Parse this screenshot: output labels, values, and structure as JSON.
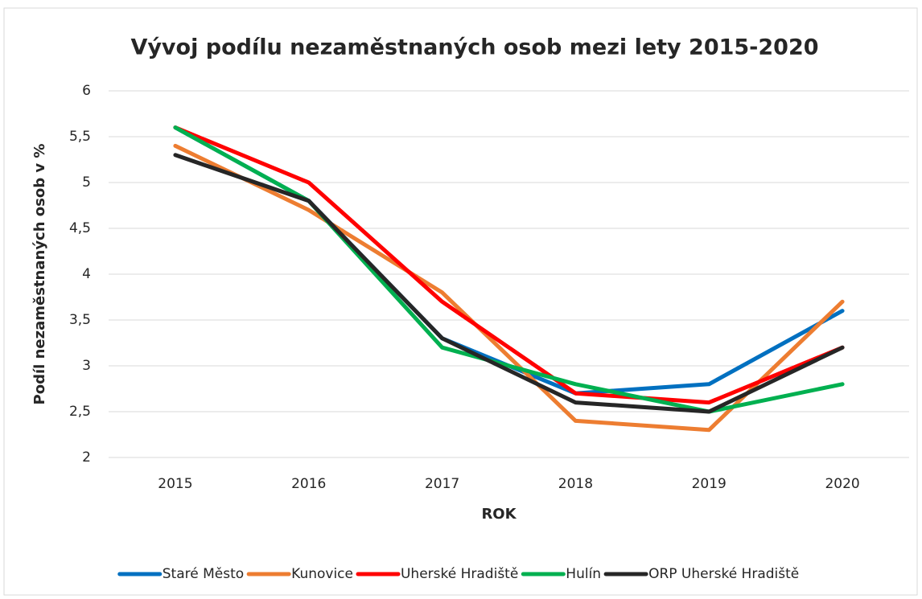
{
  "chart_data": {
    "type": "line",
    "title": "Vývoj podílu nezaměstnaných osob mezi lety 2015-2020",
    "x_label": "ROK",
    "y_label": "Podíl nezaměstnaných osob v %",
    "categories": [
      "2015",
      "2016",
      "2017",
      "2018",
      "2019",
      "2020"
    ],
    "series": [
      {
        "name": "Staré Město",
        "color": "#0070c0",
        "values": [
          5.6,
          4.8,
          3.3,
          2.7,
          2.8,
          3.6
        ]
      },
      {
        "name": "Kunovice",
        "color": "#ed7d31",
        "values": [
          5.4,
          4.7,
          3.8,
          2.4,
          2.3,
          3.7
        ]
      },
      {
        "name": "Uherské Hradiště",
        "color": "#ff0000",
        "values": [
          5.6,
          5.0,
          3.7,
          2.7,
          2.6,
          3.2
        ]
      },
      {
        "name": "Hulín",
        "color": "#00b050",
        "values": [
          5.6,
          4.8,
          3.2,
          2.8,
          2.5,
          2.8
        ]
      },
      {
        "name": "ORP Uherské Hradiště",
        "color": "#262626",
        "values": [
          5.3,
          4.8,
          3.3,
          2.6,
          2.5,
          3.2
        ]
      }
    ],
    "ylim": [
      2,
      6
    ],
    "yticks": [
      2,
      {
        "value": 2.5,
        "label": "2,5"
      },
      3,
      {
        "value": 3.5,
        "label": "3,5"
      },
      4,
      {
        "value": 4.5,
        "label": "4,5"
      },
      5,
      {
        "value": 5.5,
        "label": "5,5"
      },
      6
    ],
    "grid": true,
    "legend": "bottom"
  }
}
